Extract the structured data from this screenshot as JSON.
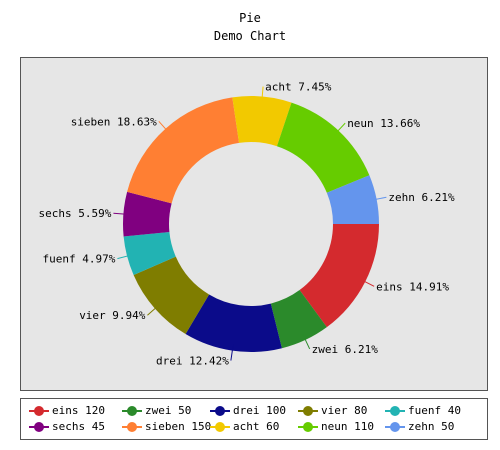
{
  "title": "Pie",
  "subtitle": "Demo Chart",
  "chart_data": {
    "type": "pie",
    "style": "donut",
    "categories": [
      "eins",
      "zwei",
      "drei",
      "vier",
      "fuenf",
      "sechs",
      "sieben",
      "acht",
      "neun",
      "zehn"
    ],
    "values": [
      120,
      50,
      100,
      80,
      40,
      45,
      150,
      60,
      110,
      50
    ],
    "percent_labels": [
      "14.91%",
      "6.21%",
      "12.42%",
      "9.94%",
      "4.97%",
      "5.59%",
      "18.63%",
      "7.45%",
      "13.66%",
      "6.21%"
    ],
    "slice_labels": [
      "eins 14.91%",
      "zwei 6.21%",
      "drei 12.42%",
      "vier 9.94%",
      "fuenf 4.97%",
      "sechs 5.59%",
      "sieben 18.63%",
      "acht 7.45%",
      "neun 13.66%",
      "zehn 6.21%"
    ],
    "legend_labels": [
      "eins 120",
      "zwei 50",
      "drei 100",
      "vier 80",
      "fuenf 40",
      "sechs 45",
      "sieben 150",
      "acht 60",
      "neun 110",
      "zehn 50"
    ],
    "colors": [
      "#d42a2e",
      "#2b8a2b",
      "#0b0b8a",
      "#7f7d00",
      "#22b3b3",
      "#800080",
      "#ff7f33",
      "#f2c900",
      "#66cc00",
      "#6495ed"
    ],
    "legend_position": "bottom"
  }
}
